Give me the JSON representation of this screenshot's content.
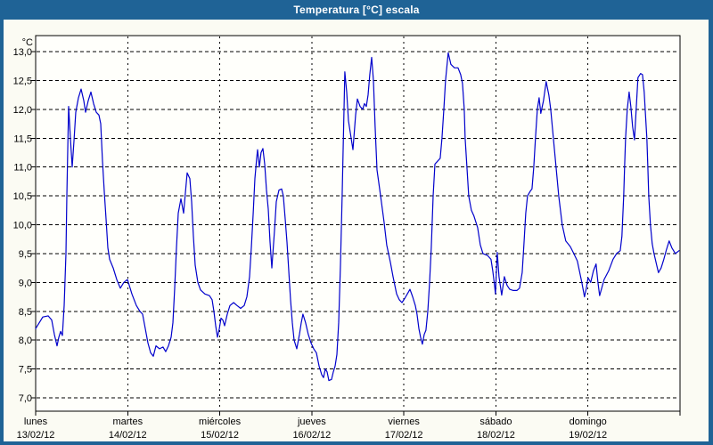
{
  "window": {
    "title": "Temperatura [°C] escala",
    "frame_color": "#1f6396",
    "titlebar_text_color": "#ffffff",
    "content_bg": "#fbfbf3",
    "plot_bg": "#fffffb"
  },
  "chart_data": {
    "type": "line",
    "title": "Temperatura [°C] escala",
    "grid": "dashed",
    "legend": "none",
    "line_color": "#0000cc",
    "axis_color": "#000000",
    "y_axis": {
      "unit_label": "°C",
      "min": 7.0,
      "max": 13.0,
      "tick_step": 0.5,
      "ticks": [
        {
          "value": 13.0,
          "label": "13,0"
        },
        {
          "value": 12.5,
          "label": "12,5"
        },
        {
          "value": 12.0,
          "label": "12,0"
        },
        {
          "value": 11.5,
          "label": "11,5"
        },
        {
          "value": 11.0,
          "label": "11,0"
        },
        {
          "value": 10.5,
          "label": "10,5"
        },
        {
          "value": 10.0,
          "label": "10,0"
        },
        {
          "value": 9.5,
          "label": "9,5"
        },
        {
          "value": 9.0,
          "label": "9,0"
        },
        {
          "value": 8.5,
          "label": "8,5"
        },
        {
          "value": 8.0,
          "label": "8,0"
        },
        {
          "value": 7.5,
          "label": "7,5"
        },
        {
          "value": 7.0,
          "label": "7,0"
        }
      ]
    },
    "x_axis": {
      "unit": "days",
      "span_days": 7,
      "days": [
        {
          "name": "lunes",
          "date": "13/02/12"
        },
        {
          "name": "martes",
          "date": "14/02/12"
        },
        {
          "name": "miércoles",
          "date": "15/02/12"
        },
        {
          "name": "jueves",
          "date": "16/02/12"
        },
        {
          "name": "viernes",
          "date": "17/02/12"
        },
        {
          "name": "sábado",
          "date": "18/02/12"
        },
        {
          "name": "domingo",
          "date": "19/02/12"
        }
      ]
    },
    "series": [
      {
        "name": "Temperatura",
        "x_unit": "days_since_monday_00h",
        "points": [
          [
            0,
            8.2
          ],
          [
            0.039,
            8.3
          ],
          [
            0.077,
            8.4
          ],
          [
            0.136,
            8.42
          ],
          [
            0.174,
            8.35
          ],
          [
            0.203,
            8.1
          ],
          [
            0.232,
            7.9
          ],
          [
            0.252,
            8.05
          ],
          [
            0.271,
            8.15
          ],
          [
            0.29,
            8.08
          ],
          [
            0.31,
            8.6
          ],
          [
            0.329,
            9.5
          ],
          [
            0.339,
            10.5
          ],
          [
            0.349,
            11.3
          ],
          [
            0.358,
            12.05
          ],
          [
            0.378,
            11.5
          ],
          [
            0.397,
            11.0
          ],
          [
            0.416,
            11.45
          ],
          [
            0.436,
            11.95
          ],
          [
            0.465,
            12.2
          ],
          [
            0.494,
            12.35
          ],
          [
            0.523,
            12.15
          ],
          [
            0.542,
            11.95
          ],
          [
            0.571,
            12.15
          ],
          [
            0.6,
            12.3
          ],
          [
            0.629,
            12.1
          ],
          [
            0.658,
            11.95
          ],
          [
            0.687,
            11.9
          ],
          [
            0.707,
            11.75
          ],
          [
            0.726,
            11.1
          ],
          [
            0.746,
            10.55
          ],
          [
            0.765,
            10.1
          ],
          [
            0.784,
            9.6
          ],
          [
            0.804,
            9.4
          ],
          [
            0.842,
            9.25
          ],
          [
            0.881,
            9.05
          ],
          [
            0.92,
            8.9
          ],
          [
            0.958,
            9.0
          ],
          [
            0.997,
            9.05
          ],
          [
            1.046,
            8.8
          ],
          [
            1.094,
            8.6
          ],
          [
            1.133,
            8.5
          ],
          [
            1.162,
            8.45
          ],
          [
            1.191,
            8.2
          ],
          [
            1.22,
            7.95
          ],
          [
            1.249,
            7.78
          ],
          [
            1.278,
            7.72
          ],
          [
            1.307,
            7.9
          ],
          [
            1.346,
            7.85
          ],
          [
            1.384,
            7.88
          ],
          [
            1.413,
            7.8
          ],
          [
            1.443,
            7.9
          ],
          [
            1.472,
            8.05
          ],
          [
            1.491,
            8.3
          ],
          [
            1.51,
            8.9
          ],
          [
            1.53,
            9.6
          ],
          [
            1.549,
            10.2
          ],
          [
            1.578,
            10.45
          ],
          [
            1.607,
            10.2
          ],
          [
            1.646,
            10.9
          ],
          [
            1.675,
            10.8
          ],
          [
            1.694,
            10.4
          ],
          [
            1.714,
            9.8
          ],
          [
            1.733,
            9.3
          ],
          [
            1.762,
            9.0
          ],
          [
            1.791,
            8.87
          ],
          [
            1.839,
            8.8
          ],
          [
            1.888,
            8.77
          ],
          [
            1.917,
            8.7
          ],
          [
            1.936,
            8.5
          ],
          [
            1.956,
            8.25
          ],
          [
            1.975,
            8.05
          ],
          [
            1.995,
            8.2
          ],
          [
            2.014,
            8.38
          ],
          [
            2.033,
            8.35
          ],
          [
            2.053,
            8.25
          ],
          [
            2.082,
            8.45
          ],
          [
            2.111,
            8.6
          ],
          [
            2.15,
            8.65
          ],
          [
            2.188,
            8.6
          ],
          [
            2.227,
            8.55
          ],
          [
            2.266,
            8.6
          ],
          [
            2.295,
            8.75
          ],
          [
            2.324,
            9.1
          ],
          [
            2.343,
            9.6
          ],
          [
            2.363,
            10.2
          ],
          [
            2.382,
            10.8
          ],
          [
            2.401,
            11.15
          ],
          [
            2.411,
            11.3
          ],
          [
            2.43,
            11.0
          ],
          [
            2.449,
            11.25
          ],
          [
            2.469,
            11.32
          ],
          [
            2.488,
            11.05
          ],
          [
            2.508,
            10.6
          ],
          [
            2.527,
            10.27
          ],
          [
            2.546,
            9.7
          ],
          [
            2.566,
            9.25
          ],
          [
            2.595,
            9.9
          ],
          [
            2.614,
            10.4
          ],
          [
            2.643,
            10.6
          ],
          [
            2.672,
            10.62
          ],
          [
            2.691,
            10.5
          ],
          [
            2.711,
            10.1
          ],
          [
            2.73,
            9.7
          ],
          [
            2.75,
            9.2
          ],
          [
            2.769,
            8.7
          ],
          [
            2.788,
            8.3
          ],
          [
            2.808,
            8.0
          ],
          [
            2.837,
            7.85
          ],
          [
            2.866,
            8.1
          ],
          [
            2.885,
            8.3
          ],
          [
            2.904,
            8.45
          ],
          [
            2.933,
            8.3
          ],
          [
            2.962,
            8.1
          ],
          [
            2.992,
            7.95
          ],
          [
            3.021,
            7.85
          ],
          [
            3.05,
            7.78
          ],
          [
            3.079,
            7.55
          ],
          [
            3.108,
            7.4
          ],
          [
            3.127,
            7.35
          ],
          [
            3.147,
            7.5
          ],
          [
            3.166,
            7.45
          ],
          [
            3.185,
            7.3
          ],
          [
            3.214,
            7.32
          ],
          [
            3.234,
            7.45
          ],
          [
            3.253,
            7.55
          ],
          [
            3.272,
            7.75
          ],
          [
            3.292,
            8.3
          ],
          [
            3.311,
            9.3
          ],
          [
            3.33,
            10.5
          ],
          [
            3.34,
            11.3
          ],
          [
            3.35,
            12.0
          ],
          [
            3.359,
            12.65
          ],
          [
            3.379,
            12.3
          ],
          [
            3.398,
            11.8
          ],
          [
            3.427,
            11.5
          ],
          [
            3.447,
            11.3
          ],
          [
            3.476,
            11.9
          ],
          [
            3.495,
            12.18
          ],
          [
            3.524,
            12.05
          ],
          [
            3.553,
            12.0
          ],
          [
            3.572,
            12.1
          ],
          [
            3.592,
            12.05
          ],
          [
            3.611,
            12.25
          ],
          [
            3.63,
            12.6
          ],
          [
            3.65,
            12.9
          ],
          [
            3.669,
            12.5
          ],
          [
            3.688,
            11.7
          ],
          [
            3.708,
            10.95
          ],
          [
            3.727,
            10.74
          ],
          [
            3.756,
            10.4
          ],
          [
            3.785,
            10.05
          ],
          [
            3.814,
            9.65
          ],
          [
            3.853,
            9.35
          ],
          [
            3.882,
            9.1
          ],
          [
            3.921,
            8.8
          ],
          [
            3.95,
            8.7
          ],
          [
            3.979,
            8.65
          ],
          [
            4.008,
            8.72
          ],
          [
            4.037,
            8.8
          ],
          [
            4.066,
            8.88
          ],
          [
            4.095,
            8.75
          ],
          [
            4.124,
            8.6
          ],
          [
            4.143,
            8.45
          ],
          [
            4.163,
            8.2
          ],
          [
            4.182,
            8.05
          ],
          [
            4.201,
            7.93
          ],
          [
            4.221,
            8.1
          ],
          [
            4.24,
            8.17
          ],
          [
            4.26,
            8.5
          ],
          [
            4.279,
            9.0
          ],
          [
            4.298,
            9.6
          ],
          [
            4.318,
            10.5
          ],
          [
            4.337,
            11.05
          ],
          [
            4.366,
            11.1
          ],
          [
            4.395,
            11.15
          ],
          [
            4.414,
            11.5
          ],
          [
            4.434,
            12.0
          ],
          [
            4.453,
            12.5
          ],
          [
            4.482,
            12.98
          ],
          [
            4.511,
            12.78
          ],
          [
            4.55,
            12.72
          ],
          [
            4.588,
            12.72
          ],
          [
            4.617,
            12.6
          ],
          [
            4.637,
            12.45
          ],
          [
            4.656,
            12.0
          ],
          [
            4.666,
            11.5
          ],
          [
            4.685,
            11.0
          ],
          [
            4.704,
            10.5
          ],
          [
            4.733,
            10.25
          ],
          [
            4.762,
            10.15
          ],
          [
            4.801,
            9.95
          ],
          [
            4.83,
            9.65
          ],
          [
            4.859,
            9.5
          ],
          [
            4.908,
            9.47
          ],
          [
            4.946,
            9.4
          ],
          [
            4.966,
            9.2
          ],
          [
            4.985,
            8.95
          ],
          [
            4.995,
            8.8
          ],
          [
            5.014,
            9.52
          ],
          [
            5.034,
            9.1
          ],
          [
            5.063,
            8.78
          ],
          [
            5.092,
            9.1
          ],
          [
            5.121,
            8.95
          ],
          [
            5.15,
            8.88
          ],
          [
            5.189,
            8.86
          ],
          [
            5.227,
            8.86
          ],
          [
            5.256,
            8.9
          ],
          [
            5.285,
            9.17
          ],
          [
            5.305,
            9.67
          ],
          [
            5.324,
            10.2
          ],
          [
            5.343,
            10.5
          ],
          [
            5.372,
            10.58
          ],
          [
            5.392,
            10.62
          ],
          [
            5.411,
            11.0
          ],
          [
            5.43,
            11.5
          ],
          [
            5.45,
            12.0
          ],
          [
            5.469,
            12.2
          ],
          [
            5.488,
            11.93
          ],
          [
            5.517,
            12.15
          ],
          [
            5.546,
            12.48
          ],
          [
            5.575,
            12.25
          ],
          [
            5.595,
            12.0
          ],
          [
            5.624,
            11.5
          ],
          [
            5.653,
            11.0
          ],
          [
            5.682,
            10.5
          ],
          [
            5.72,
            10.0
          ],
          [
            5.759,
            9.72
          ],
          [
            5.808,
            9.62
          ],
          [
            5.846,
            9.5
          ],
          [
            5.885,
            9.37
          ],
          [
            5.933,
            9.0
          ],
          [
            5.962,
            8.75
          ],
          [
            5.982,
            8.9
          ],
          [
            6.001,
            9.08
          ],
          [
            6.03,
            9.0
          ],
          [
            6.059,
            9.2
          ],
          [
            6.088,
            9.32
          ],
          [
            6.108,
            9.0
          ],
          [
            6.127,
            8.77
          ],
          [
            6.175,
            9.05
          ],
          [
            6.224,
            9.2
          ],
          [
            6.272,
            9.4
          ],
          [
            6.311,
            9.5
          ],
          [
            6.35,
            9.55
          ],
          [
            6.369,
            9.8
          ],
          [
            6.388,
            10.5
          ],
          [
            6.398,
            11.0
          ],
          [
            6.408,
            11.5
          ],
          [
            6.427,
            12.0
          ],
          [
            6.447,
            12.3
          ],
          [
            6.466,
            12.05
          ],
          [
            6.485,
            11.7
          ],
          [
            6.505,
            11.47
          ],
          [
            6.524,
            12.0
          ],
          [
            6.543,
            12.55
          ],
          [
            6.572,
            12.62
          ],
          [
            6.592,
            12.6
          ],
          [
            6.611,
            12.3
          ],
          [
            6.621,
            12.0
          ],
          [
            6.64,
            11.5
          ],
          [
            6.65,
            11.0
          ],
          [
            6.66,
            10.5
          ],
          [
            6.679,
            10.0
          ],
          [
            6.698,
            9.67
          ],
          [
            6.717,
            9.5
          ],
          [
            6.746,
            9.3
          ],
          [
            6.766,
            9.17
          ],
          [
            6.795,
            9.25
          ],
          [
            6.824,
            9.4
          ],
          [
            6.853,
            9.57
          ],
          [
            6.882,
            9.72
          ],
          [
            6.911,
            9.6
          ],
          [
            6.95,
            9.5
          ],
          [
            6.989,
            9.55
          ]
        ]
      }
    ]
  }
}
